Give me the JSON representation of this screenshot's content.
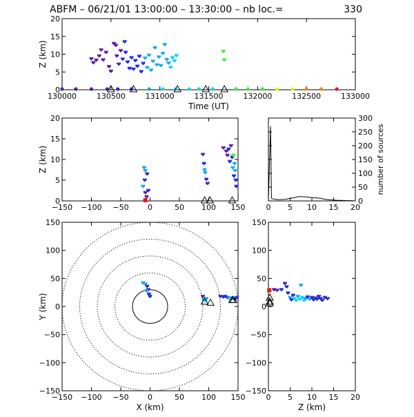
{
  "title": {
    "prefix": "ABFM – 06/21/01 13:00:00 – 13:30:00 – nb loc.=",
    "count": "330"
  },
  "marker_colors": {
    "violet": "#5a1aa6",
    "blue": "#1c2ee0",
    "sky": "#19a8ee",
    "cyan": "#11d6f0",
    "green": "#3df03a",
    "yellow": "#eef01e",
    "orange": "#f08a14",
    "red": "#e61818"
  },
  "chart_data": [
    {
      "id": "time-height",
      "type": "scatter",
      "xlabel": "Time (UT)",
      "ylabel": "Z (km)",
      "xlim": [
        130000,
        133000
      ],
      "ylim": [
        0,
        20
      ],
      "xticks": [
        "130000",
        "130500",
        "131000",
        "131500",
        "132000",
        "132500",
        "133000"
      ],
      "yticks": [
        "0",
        "5",
        "10",
        "15",
        "20"
      ],
      "points": [
        [
          130300,
          8.7,
          "violet"
        ],
        [
          130320,
          7.6,
          "violet"
        ],
        [
          130350,
          8.3,
          "violet"
        ],
        [
          130380,
          9.5,
          "violet"
        ],
        [
          130400,
          11.2,
          "violet"
        ],
        [
          130420,
          8.4,
          "violet"
        ],
        [
          130450,
          10.5,
          "violet"
        ],
        [
          130480,
          6.5,
          "violet"
        ],
        [
          130500,
          5.2,
          "violet"
        ],
        [
          130530,
          13.0,
          "violet"
        ],
        [
          130550,
          12.5,
          "violet"
        ],
        [
          130560,
          9.5,
          "violet"
        ],
        [
          130580,
          7.2,
          "violet"
        ],
        [
          130600,
          11.0,
          "violet"
        ],
        [
          130620,
          8.6,
          "blue"
        ],
        [
          130640,
          13.5,
          "blue"
        ],
        [
          130650,
          10.5,
          "blue"
        ],
        [
          130670,
          7.8,
          "blue"
        ],
        [
          130690,
          6.0,
          "blue"
        ],
        [
          130710,
          9.0,
          "blue"
        ],
        [
          130730,
          5.8,
          "blue"
        ],
        [
          130750,
          8.2,
          "blue"
        ],
        [
          130770,
          6.6,
          "blue"
        ],
        [
          130790,
          9.4,
          "blue"
        ],
        [
          130810,
          5.1,
          "blue"
        ],
        [
          130830,
          7.4,
          "blue"
        ],
        [
          130850,
          8.9,
          "sky"
        ],
        [
          130870,
          6.2,
          "sky"
        ],
        [
          130890,
          9.7,
          "sky"
        ],
        [
          130910,
          5.5,
          "sky"
        ],
        [
          130930,
          8.0,
          "sky"
        ],
        [
          130950,
          11.8,
          "sky"
        ],
        [
          130970,
          7.0,
          "sky"
        ],
        [
          130990,
          9.2,
          "sky"
        ],
        [
          131010,
          6.8,
          "sky"
        ],
        [
          131030,
          10.2,
          "sky"
        ],
        [
          131050,
          12.7,
          "sky"
        ],
        [
          131070,
          8.5,
          "sky"
        ],
        [
          131090,
          7.5,
          "sky"
        ],
        [
          131110,
          6.3,
          "cyan"
        ],
        [
          131130,
          9.0,
          "cyan"
        ],
        [
          131150,
          8.1,
          "cyan"
        ],
        [
          131170,
          9.6,
          "cyan"
        ],
        [
          131650,
          10.8,
          "green"
        ],
        [
          131660,
          8.4,
          "green"
        ]
      ],
      "ground_points": [
        [
          130000,
          "violet"
        ],
        [
          130140,
          "violet"
        ],
        [
          130300,
          "violet"
        ],
        [
          130460,
          "violet"
        ],
        [
          130570,
          "blue"
        ],
        [
          130710,
          "blue"
        ],
        [
          130890,
          "sky"
        ],
        [
          131030,
          "cyan"
        ],
        [
          131160,
          "cyan"
        ],
        [
          131300,
          "cyan"
        ],
        [
          131400,
          "cyan"
        ],
        [
          131540,
          "cyan"
        ],
        [
          131780,
          "green"
        ],
        [
          131900,
          "green"
        ],
        [
          132050,
          "green"
        ],
        [
          132200,
          "yellow"
        ],
        [
          132360,
          "yellow"
        ],
        [
          132500,
          "orange"
        ],
        [
          132650,
          "orange"
        ],
        [
          132810,
          "red"
        ]
      ],
      "triangles": [
        130500,
        130730,
        131180,
        131470,
        131660
      ]
    },
    {
      "id": "x-height",
      "type": "scatter",
      "xlim": [
        -150,
        150
      ],
      "ylim": [
        0,
        20
      ],
      "ylabel": "Z (km)",
      "xticks": [
        "−150",
        "−100",
        "−50",
        "0",
        "50",
        "100",
        "150"
      ],
      "yticks": [
        "0",
        "5",
        "10",
        "15",
        "20"
      ],
      "points": [
        [
          -10,
          8.0,
          "sky"
        ],
        [
          -8,
          7.3,
          "sky"
        ],
        [
          -5,
          6.5,
          "violet"
        ],
        [
          -9,
          5.0,
          "blue"
        ],
        [
          -12,
          3.5,
          "sky"
        ],
        [
          -8,
          2.0,
          "violet"
        ],
        [
          -6,
          1.0,
          "violet"
        ],
        [
          -3,
          2.5,
          "blue"
        ],
        [
          90,
          11.2,
          "violet"
        ],
        [
          92,
          9.0,
          "blue"
        ],
        [
          93,
          7.5,
          "sky"
        ],
        [
          94,
          6.8,
          "sky"
        ],
        [
          96,
          5.2,
          "blue"
        ],
        [
          98,
          4.2,
          "violet"
        ],
        [
          125,
          12.8,
          "violet"
        ],
        [
          130,
          12.0,
          "violet"
        ],
        [
          132,
          11.0,
          "violet"
        ],
        [
          134,
          12.5,
          "blue"
        ],
        [
          136,
          9.5,
          "blue"
        ],
        [
          138,
          13.3,
          "violet"
        ],
        [
          140,
          10.5,
          "blue"
        ],
        [
          141,
          8.0,
          "sky"
        ],
        [
          142,
          11.0,
          "green"
        ],
        [
          143,
          6.0,
          "blue"
        ],
        [
          144,
          9.0,
          "sky"
        ],
        [
          145,
          7.3,
          "sky"
        ],
        [
          146,
          5.0,
          "blue"
        ],
        [
          147,
          3.5,
          "blue"
        ]
      ],
      "ground_points": [
        [
          -8,
          0,
          "red"
        ]
      ],
      "triangles": [
        93,
        102,
        140
      ]
    },
    {
      "id": "source-histogram",
      "type": "line",
      "xlim": [
        0,
        20
      ],
      "ylim": [
        0,
        300
      ],
      "ylabel": "number of sources",
      "xticks": [
        "0",
        "5",
        "10",
        "15",
        "20"
      ],
      "yticks": [
        "0",
        "50",
        "100",
        "150",
        "200",
        "250",
        "300"
      ],
      "x": [
        0,
        0.5,
        0.7,
        1,
        2,
        3,
        4,
        5,
        6,
        7,
        8,
        9,
        10,
        11,
        12,
        13,
        14,
        15,
        16,
        17,
        18,
        19,
        20
      ],
      "y": [
        0,
        270,
        10,
        7,
        5,
        5,
        6,
        9,
        12,
        16,
        15,
        14,
        12,
        11,
        9,
        6,
        4,
        3,
        2,
        2,
        1,
        1,
        0
      ]
    },
    {
      "id": "plan-view",
      "type": "scatter",
      "xlabel": "X (km)",
      "ylabel": "Y (km)",
      "xlim": [
        -150,
        150
      ],
      "ylim": [
        -150,
        150
      ],
      "xticks": [
        "−150",
        "−100",
        "−50",
        "0",
        "50",
        "100",
        "150"
      ],
      "yticks": [
        "−150",
        "−100",
        "−50",
        "0",
        "50",
        "100",
        "150"
      ],
      "range_rings_km": [
        30,
        60,
        90,
        120,
        150
      ],
      "points": [
        [
          -12,
          42,
          "sky"
        ],
        [
          -8,
          40,
          "sky"
        ],
        [
          -5,
          36,
          "blue"
        ],
        [
          -3,
          30,
          "violet"
        ],
        [
          -6,
          28,
          "sky"
        ],
        [
          -2,
          22,
          "blue"
        ],
        [
          0,
          18,
          "blue"
        ],
        [
          90,
          18,
          "violet"
        ],
        [
          92,
          12,
          "sky"
        ],
        [
          94,
          10,
          "cyan"
        ],
        [
          96,
          14,
          "sky"
        ],
        [
          120,
          18,
          "blue"
        ],
        [
          125,
          17,
          "blue"
        ],
        [
          128,
          18,
          "blue"
        ],
        [
          132,
          16,
          "blue"
        ],
        [
          135,
          15,
          "sky"
        ],
        [
          138,
          14,
          "cyan"
        ],
        [
          140,
          15,
          "cyan"
        ],
        [
          142,
          14,
          "sky"
        ],
        [
          145,
          13,
          "blue"
        ],
        [
          148,
          16,
          "blue"
        ]
      ],
      "triangles": [
        [
          93,
          9
        ],
        [
          103,
          7
        ],
        [
          140,
          12
        ],
        [
          142,
          12
        ]
      ]
    },
    {
      "id": "z-y-view",
      "type": "scatter",
      "xlabel": "Z (km)",
      "xlim": [
        0,
        20
      ],
      "ylim": [
        -150,
        150
      ],
      "xticks": [
        "0",
        "5",
        "10",
        "15",
        "20"
      ],
      "yticks": [
        "−150",
        "−100",
        "−50",
        "0",
        "50",
        "100",
        "150"
      ],
      "points": [
        [
          1.3,
          30,
          "violet"
        ],
        [
          2.0,
          29,
          "violet"
        ],
        [
          3.0,
          30,
          "blue"
        ],
        [
          3.8,
          41,
          "violet"
        ],
        [
          4.2,
          35,
          "blue"
        ],
        [
          4.5,
          24,
          "blue"
        ],
        [
          5.0,
          16,
          "sky"
        ],
        [
          5.3,
          12,
          "blue"
        ],
        [
          5.7,
          20,
          "blue"
        ],
        [
          6.0,
          14,
          "cyan"
        ],
        [
          6.4,
          11,
          "cyan"
        ],
        [
          6.8,
          18,
          "sky"
        ],
        [
          7.2,
          13,
          "cyan"
        ],
        [
          7.5,
          38,
          "sky"
        ],
        [
          7.8,
          16,
          "cyan"
        ],
        [
          8.2,
          11,
          "cyan"
        ],
        [
          8.6,
          14,
          "sky"
        ],
        [
          9.0,
          17,
          "blue"
        ],
        [
          9.5,
          13,
          "sky"
        ],
        [
          10.0,
          16,
          "blue"
        ],
        [
          10.4,
          12,
          "blue"
        ],
        [
          10.8,
          15,
          "violet"
        ],
        [
          11.2,
          13,
          "blue"
        ],
        [
          11.6,
          18,
          "blue"
        ],
        [
          12.0,
          14,
          "blue"
        ],
        [
          12.4,
          11,
          "blue"
        ],
        [
          13.0,
          16,
          "violet"
        ],
        [
          13.6,
          14,
          "blue"
        ]
      ],
      "ground_points": [
        [
          0.2,
          29,
          "red"
        ]
      ],
      "triangles": [
        [
          0,
          16
        ],
        [
          0,
          9
        ],
        [
          0,
          6
        ]
      ]
    }
  ]
}
